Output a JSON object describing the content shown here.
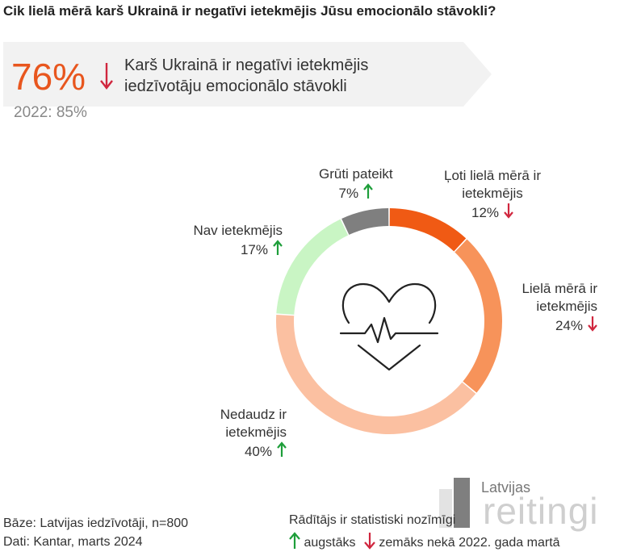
{
  "title": "Cik lielā mērā karš Ukrainā ir negatīvi ietekmējis Jūsu emocionālo stāvokli?",
  "summary": {
    "value": "76%",
    "text_line1": "Karš Ukrainā ir negatīvi ietekmējis",
    "text_line2": "iedzīvotāju emocionālo stāvokli",
    "previous": "2022: 85%",
    "trend": "down"
  },
  "colors": {
    "accent": "#E8561E",
    "arrow_up": "#1E9E3A",
    "arrow_down": "#D0263E",
    "banner_bg": "#F2F2F2"
  },
  "chart_data": {
    "type": "pie",
    "style": "donut",
    "series": [
      {
        "name": "Ļoti lielā mērā ir ietekmējis",
        "value": 12,
        "color": "#F05A14",
        "trend": "down"
      },
      {
        "name": "Lielā mērā ir ietekmējis",
        "value": 24,
        "color": "#F7935A",
        "trend": "down"
      },
      {
        "name": "Nedaudz ir ietekmējis",
        "value": 40,
        "color": "#FBC0A1",
        "trend": "up"
      },
      {
        "name": "Nav ietekmējis",
        "value": 17,
        "color": "#C9F5C4",
        "trend": "up"
      },
      {
        "name": "Grūti pateikt",
        "value": 7,
        "color": "#7F7F7F",
        "trend": "up"
      }
    ],
    "center_icon": "heart-pulse-icon"
  },
  "labels": {
    "loti_line1": "Ļoti lielā mērā ir",
    "loti_line2": "ietekmējis",
    "loti_pct": "12%",
    "liela_line1": "Lielā mērā ir",
    "liela_line2": "ietekmējis",
    "liela_pct": "24%",
    "nedaudz_line1": "Nedaudz ir",
    "nedaudz_line2": "ietekmējis",
    "nedaudz_pct": "40%",
    "nav_line1": "Nav ietekmējis",
    "nav_pct": "17%",
    "gruti_line1": "Grūti pateikt",
    "gruti_pct": "7%"
  },
  "footer": {
    "base": "Bāze: Latvijas iedzīvotāji, n=800",
    "source": "Dati: Kantar, marts 2024",
    "significance": "Rādītājs ir statistiski nozīmīgi",
    "legend_up": "augstāks",
    "legend_down": "zemāks nekā 2022. gada martā"
  },
  "logo": {
    "top": "Latvijas",
    "main": "reitingi"
  }
}
